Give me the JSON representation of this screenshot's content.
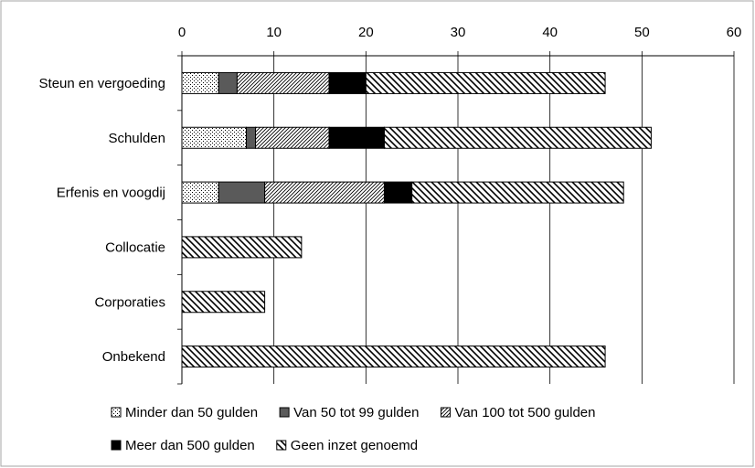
{
  "chart_data": {
    "type": "bar",
    "orientation": "horizontal",
    "stacked": true,
    "categories": [
      "Steun en vergoeding",
      "Schulden",
      "Erfenis en voogdij",
      "Collocatie",
      "Corporaties",
      "Onbekend"
    ],
    "series": [
      {
        "name": "Minder dan 50 gulden",
        "pattern": "dots",
        "values": [
          4,
          7,
          4,
          0,
          0,
          0
        ]
      },
      {
        "name": "Van 50 tot 99 gulden",
        "pattern": "solid-grey",
        "values": [
          2,
          1,
          5,
          0,
          0,
          0
        ]
      },
      {
        "name": "Van 100 tot 500 gulden",
        "pattern": "diagonal-fine",
        "values": [
          10,
          8,
          13,
          0,
          0,
          0
        ]
      },
      {
        "name": "Meer dan 500 gulden",
        "pattern": "solid-black",
        "values": [
          4,
          6,
          3,
          0,
          0,
          0
        ]
      },
      {
        "name": "Geen inzet genoemd",
        "pattern": "diagonal-wide",
        "values": [
          26,
          29,
          23,
          13,
          9,
          46
        ]
      }
    ],
    "xlim": [
      0,
      60
    ],
    "xticks": [
      0,
      10,
      20,
      30,
      40,
      50,
      60
    ],
    "x_axis_position": "top",
    "grid": true,
    "legend_position": "bottom",
    "title": "",
    "xlabel": "",
    "ylabel": "",
    "colors": {
      "grey": "#5a5a5a",
      "black": "#000000",
      "border": "#000000",
      "grid": "#000000",
      "frame": "#a6a6a6"
    }
  }
}
